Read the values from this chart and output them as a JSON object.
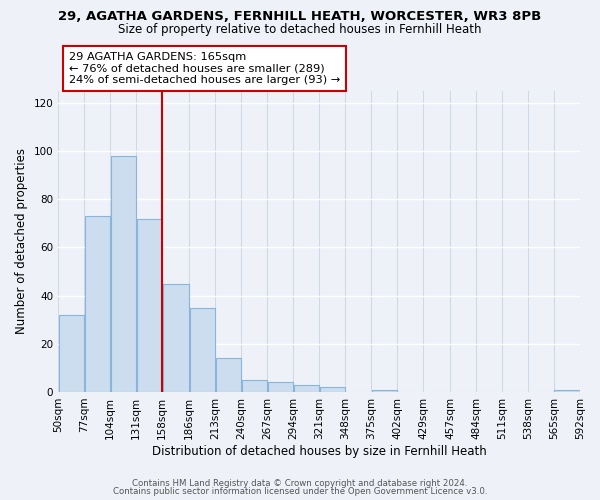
{
  "title1": "29, AGATHA GARDENS, FERNHILL HEATH, WORCESTER, WR3 8PB",
  "title2": "Size of property relative to detached houses in Fernhill Heath",
  "xlabel": "Distribution of detached houses by size in Fernhill Heath",
  "ylabel": "Number of detached properties",
  "bar_edges": [
    50,
    77,
    104,
    131,
    158,
    186,
    213,
    240,
    267,
    294,
    321,
    348,
    375,
    402,
    429,
    457,
    484,
    511,
    538,
    565,
    592
  ],
  "bar_heights": [
    32,
    73,
    98,
    72,
    45,
    35,
    14,
    5,
    4,
    3,
    2,
    0,
    1,
    0,
    0,
    0,
    0,
    0,
    0,
    1
  ],
  "bar_color": "#ccddf0",
  "bar_edgecolor": "#8ab4d8",
  "vline_x": 158,
  "vline_color": "#cc0000",
  "annotation_line1": "29 AGATHA GARDENS: 165sqm",
  "annotation_line2": "← 76% of detached houses are smaller (289)",
  "annotation_line3": "24% of semi-detached houses are larger (93) →",
  "ylim": [
    0,
    125
  ],
  "yticks": [
    0,
    20,
    40,
    60,
    80,
    100,
    120
  ],
  "tick_labels": [
    "50sqm",
    "77sqm",
    "104sqm",
    "131sqm",
    "158sqm",
    "186sqm",
    "213sqm",
    "240sqm",
    "267sqm",
    "294sqm",
    "321sqm",
    "348sqm",
    "375sqm",
    "402sqm",
    "429sqm",
    "457sqm",
    "484sqm",
    "511sqm",
    "538sqm",
    "565sqm",
    "592sqm"
  ],
  "footer1": "Contains HM Land Registry data © Crown copyright and database right 2024.",
  "footer2": "Contains public sector information licensed under the Open Government Licence v3.0.",
  "bg_color": "#eef2f8",
  "grid_color": "#d0d8e8"
}
